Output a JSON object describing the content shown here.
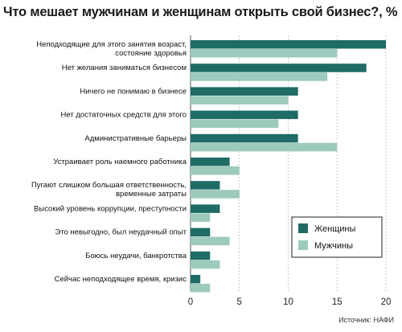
{
  "chart_data": {
    "type": "bar",
    "orientation": "horizontal",
    "title": "Что мешает мужчинам и женщинам открыть свой бизнес?, %",
    "categories": [
      "Неподходящие для этого занятия возраст,\nсостояние здоровья",
      "Нет желания заниматься бизнесом",
      "Ничего не понимаю в бизнесе",
      "Нет достаточных средств для этого",
      "Административные барьеры",
      "Устраивает роль наемного работника",
      "Пугают слишком большая ответственность,\nвременные затраты",
      "Высокий уровень коррупции, преступности",
      "Это невыгодно, был неудачный опыт",
      "Боюсь неудачи, банкротства",
      "Сейчас неподходящее время, кризис"
    ],
    "series": [
      {
        "name": "Женщины",
        "color": "#1f6b66",
        "values": [
          20,
          18,
          11,
          11,
          11,
          4,
          3,
          3,
          2,
          2,
          1
        ]
      },
      {
        "name": "Мужчины",
        "color": "#9ccabd",
        "values": [
          15,
          14,
          10,
          9,
          15,
          5,
          5,
          2,
          4,
          3,
          2
        ]
      }
    ],
    "xlim": [
      0,
      20
    ],
    "xticks": [
      "0",
      "5",
      "10",
      "15",
      "20"
    ],
    "grid": true,
    "legend_position": "bottom-right",
    "source": "Источник: НАФИ"
  }
}
